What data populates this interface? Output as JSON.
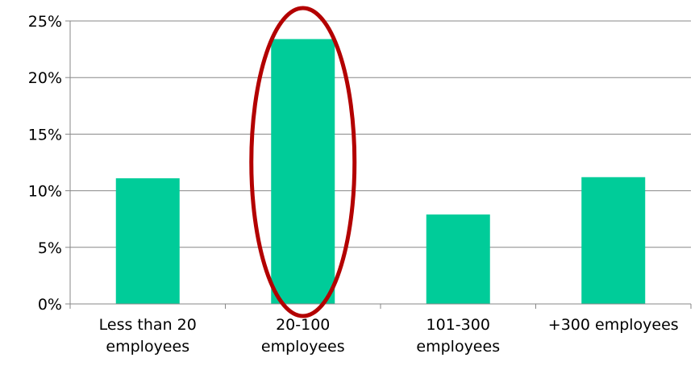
{
  "chart_data": {
    "type": "bar",
    "title": "",
    "xlabel": "",
    "ylabel": "",
    "categories": [
      [
        "Less than 20",
        "employees"
      ],
      [
        "20-100",
        "employees"
      ],
      [
        "101-300",
        "employees"
      ],
      [
        "+300 employees"
      ]
    ],
    "values": [
      11.1,
      23.4,
      7.9,
      11.2
    ],
    "ylim": [
      0,
      25
    ],
    "yticks": [
      0,
      5,
      10,
      15,
      20,
      25
    ],
    "ytick_labels": [
      "0%",
      "5%",
      "10%",
      "15%",
      "20%",
      "25%"
    ],
    "grid": true,
    "legend": "none",
    "colors": {
      "bar": "#00cc99",
      "highlight": "#b30000",
      "grid": "#878787",
      "axis": "#878787"
    },
    "annotations": [
      {
        "type": "ellipse",
        "target_category_index": 1
      }
    ]
  }
}
